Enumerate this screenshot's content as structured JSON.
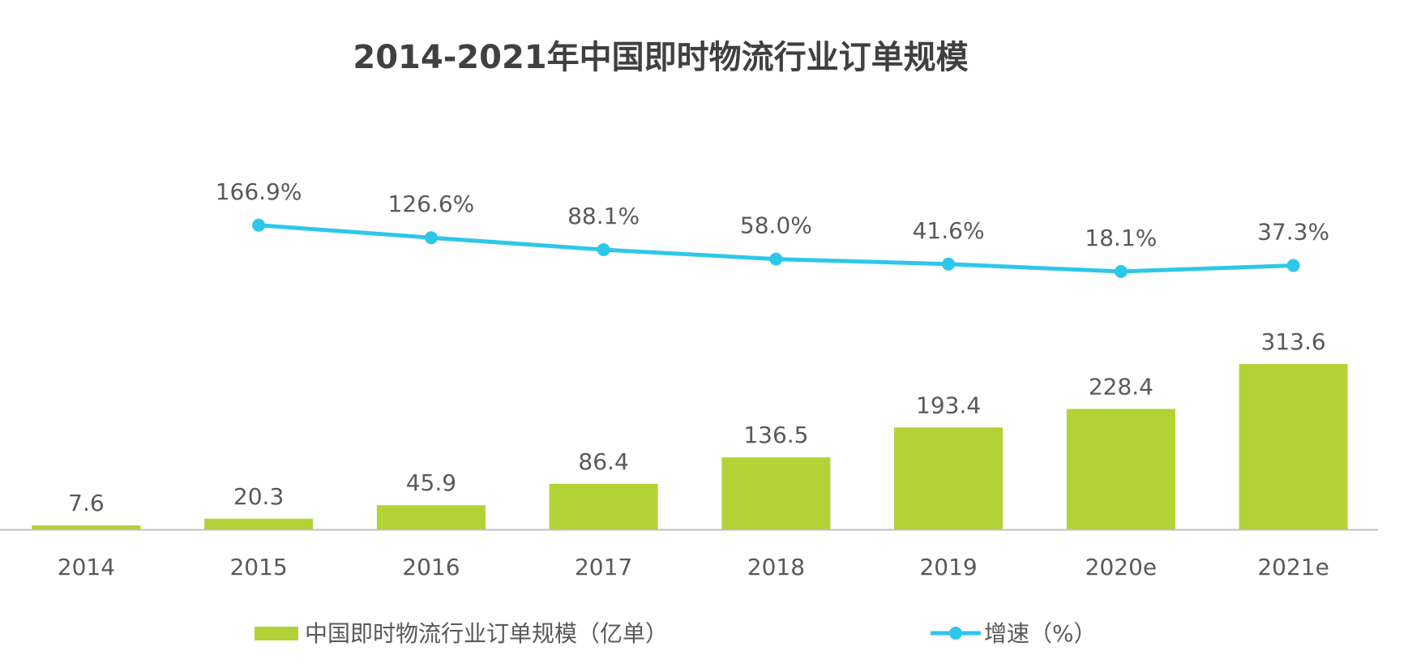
{
  "chart_data": {
    "type": "bar",
    "title": "2014-2021年中国即时物流行业订单规模",
    "categories": [
      "2014",
      "2015",
      "2016",
      "2017",
      "2018",
      "2019",
      "2020e",
      "2021e"
    ],
    "series": [
      {
        "name": "中国即时物流行业订单规模（亿单）",
        "type": "bar",
        "values": [
          7.6,
          20.3,
          45.9,
          86.4,
          136.5,
          193.4,
          228.4,
          313.6
        ],
        "labels": [
          "7.6",
          "20.3",
          "45.9",
          "86.4",
          "136.5",
          "193.4",
          "228.4",
          "313.6"
        ],
        "color": "#b2d235"
      },
      {
        "name": "增速（%）",
        "type": "line",
        "values": [
          null,
          166.9,
          126.6,
          88.1,
          58.0,
          41.6,
          18.1,
          37.3
        ],
        "labels": [
          "",
          "166.9%",
          "126.6%",
          "88.1%",
          "58.0%",
          "41.6%",
          "18.1%",
          "37.3%"
        ],
        "color": "#2ec7ea"
      }
    ],
    "ylim": [
      0,
      350
    ],
    "y2lim": [
      -300,
      200
    ],
    "grid": false,
    "legend": "bottom-center",
    "axis_color": "#bfbfbf"
  }
}
